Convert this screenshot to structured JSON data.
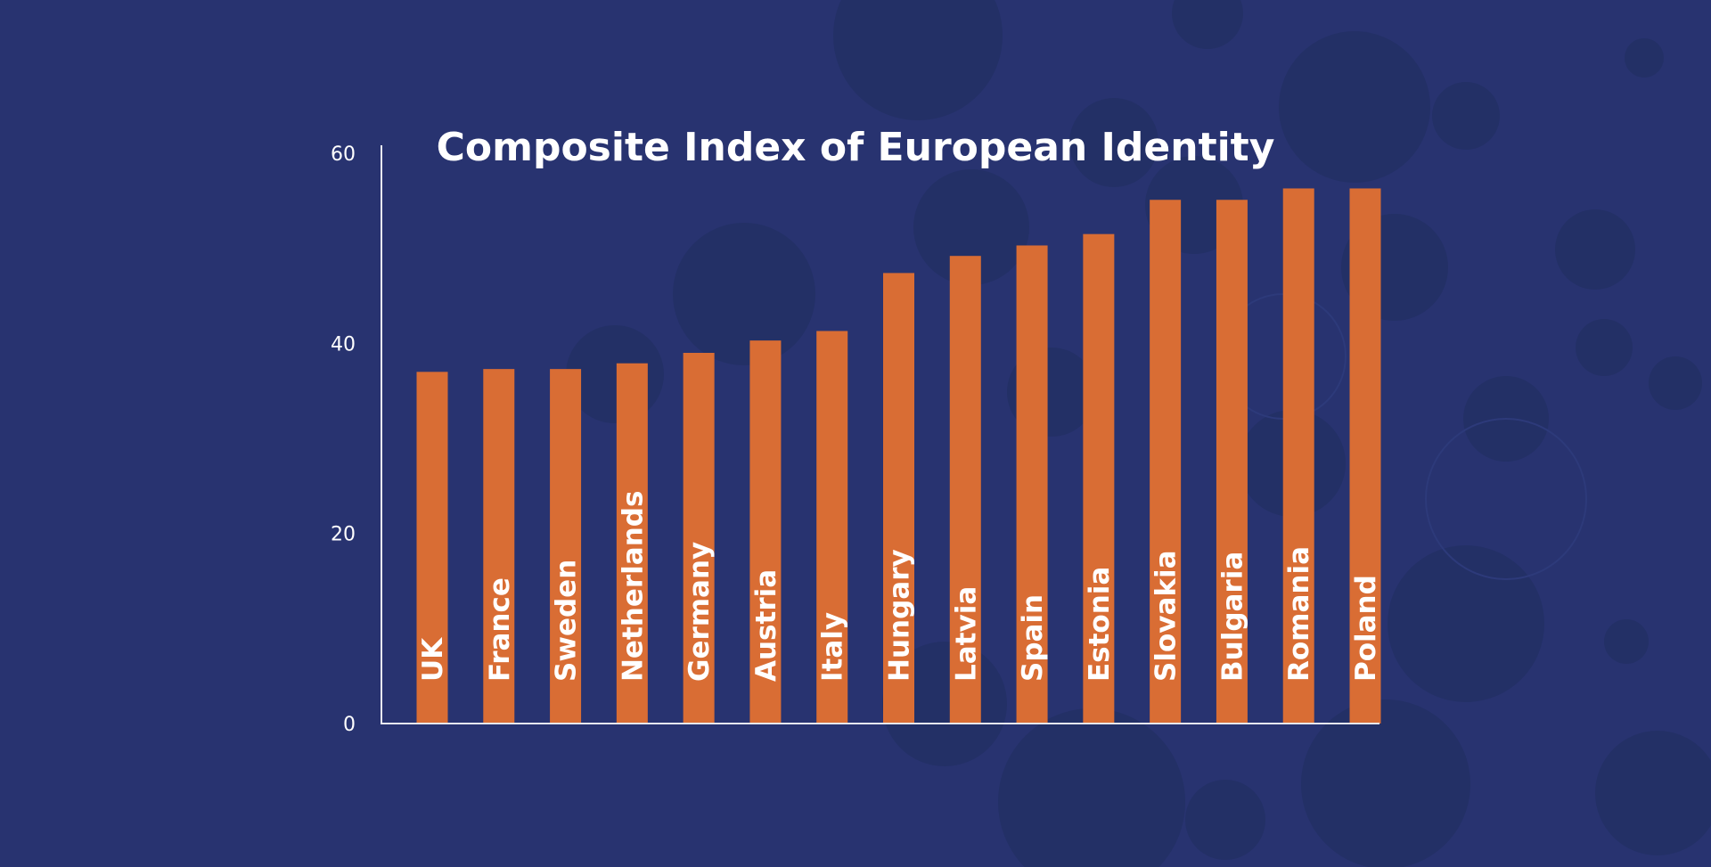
{
  "colors": {
    "background": "#283370",
    "bar": "#d96d34",
    "text": "#ffffff",
    "axis": "#e8e8f0"
  },
  "chart_data": {
    "type": "bar",
    "title": "Composite Index of European Identity",
    "xlabel": "",
    "ylabel": "",
    "ylim": [
      0,
      60
    ],
    "y_ticks": [
      0,
      20,
      40,
      60
    ],
    "grid": false,
    "legend": "none",
    "labels_inside_bars": true,
    "categories": [
      "UK",
      "France",
      "Sweden",
      "Netherlands",
      "Germany",
      "Austria",
      "Italy",
      "Hungary",
      "Latvia",
      "Spain",
      "Estonia",
      "Slovakia",
      "Bulgaria",
      "Romania",
      "Poland"
    ],
    "values": [
      37,
      37.3,
      37.3,
      37.9,
      39,
      40.3,
      41.3,
      47.4,
      49.2,
      50.3,
      51.5,
      55.1,
      55.1,
      56.3,
      56.3
    ]
  }
}
